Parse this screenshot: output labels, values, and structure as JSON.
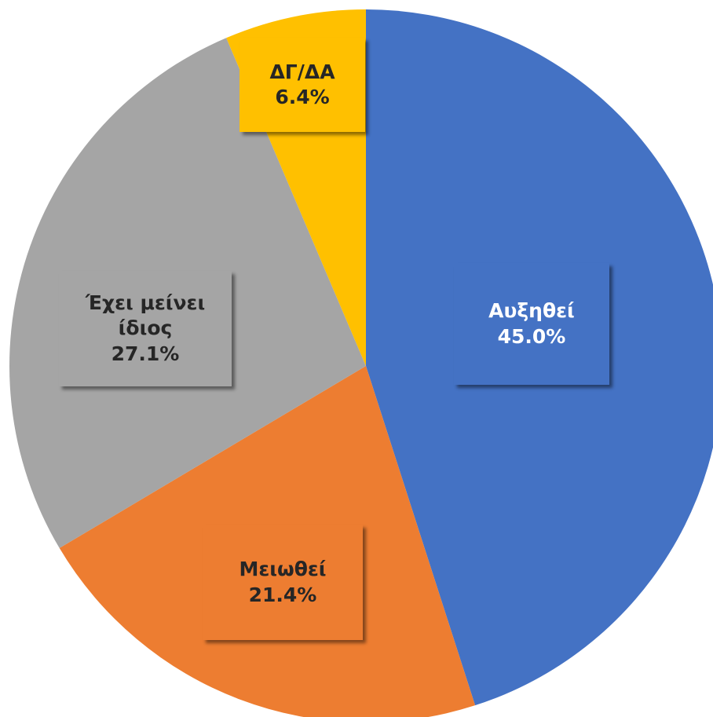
{
  "chart_data": {
    "type": "pie",
    "categories": [
      "Αυξηθεί",
      "Μειωθεί",
      "Έχει μείνει ίδιος",
      "ΔΓ/ΔΑ"
    ],
    "values": [
      45.0,
      21.4,
      27.1,
      6.4
    ],
    "value_labels": [
      "45.0%",
      "21.4%",
      "27.1%",
      "6.4%"
    ],
    "colors": [
      "#4472c4",
      "#ed7d31",
      "#a5a5a5",
      "#ffc000"
    ]
  }
}
